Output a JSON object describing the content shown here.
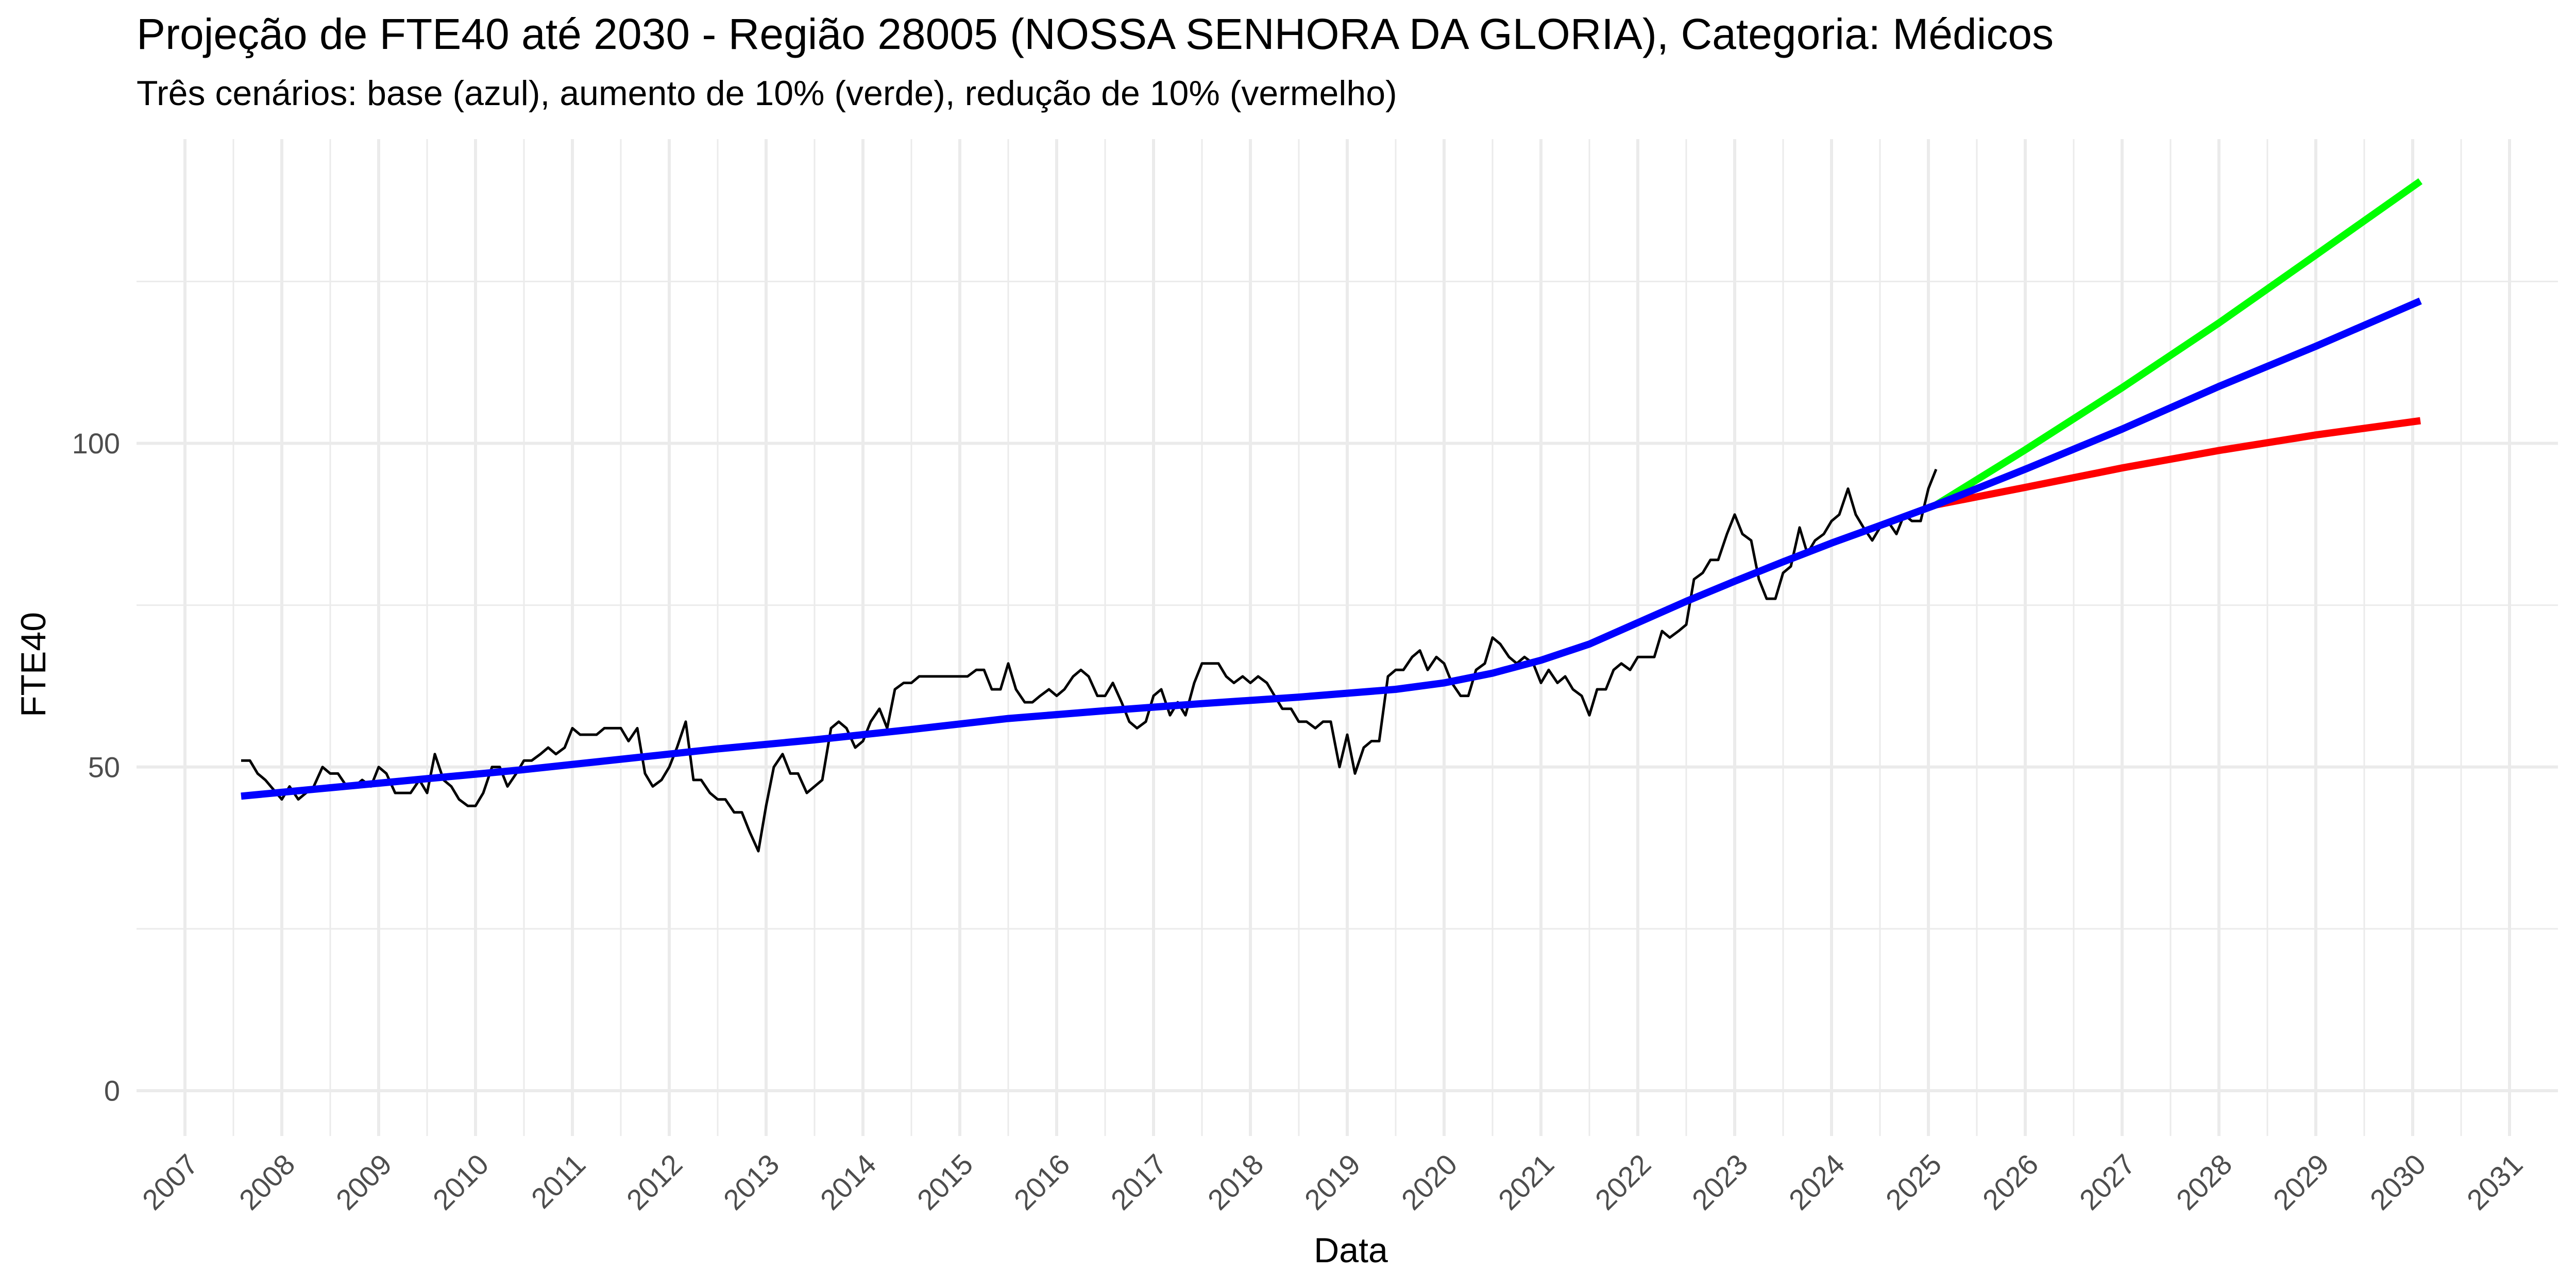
{
  "chart_data": {
    "type": "line",
    "title": "Projeção de FTE40 até 2030 - Região 28005 (NOSSA SENHORA DA GLORIA), Categoria: Médicos",
    "subtitle": "Três cenários: base (azul), aumento de 10% (verde), redução de 10% (vermelho)",
    "xlabel": "Data",
    "ylabel": "FTE40",
    "xlim": [
      2006.5,
      2031.5
    ],
    "ylim": [
      -7,
      147
    ],
    "x_ticks": [
      2007,
      2008,
      2009,
      2010,
      2011,
      2012,
      2013,
      2014,
      2015,
      2016,
      2017,
      2018,
      2019,
      2020,
      2021,
      2022,
      2023,
      2024,
      2025,
      2026,
      2027,
      2028,
      2029,
      2030,
      2031
    ],
    "y_ticks": [
      0,
      50,
      100
    ],
    "grid": true,
    "legend": "none",
    "colors": {
      "observed": "#000000",
      "base": "#0000ff",
      "aumento": "#00ff00",
      "reducao": "#ff0000",
      "grid": "#ebebeb"
    },
    "series": [
      {
        "key": "observed",
        "x": [
          2007.58,
          2007.67,
          2007.75,
          2007.83,
          2008.0,
          2008.08,
          2008.17,
          2008.25,
          2008.33,
          2008.42,
          2008.5,
          2008.58,
          2008.67,
          2008.75,
          2008.83,
          2008.92,
          2009.0,
          2009.08,
          2009.17,
          2009.25,
          2009.33,
          2009.42,
          2009.5,
          2009.58,
          2009.67,
          2009.75,
          2009.83,
          2009.92,
          2010.0,
          2010.08,
          2010.17,
          2010.25,
          2010.33,
          2010.42,
          2010.5,
          2010.58,
          2010.67,
          2010.75,
          2010.83,
          2010.92,
          2011.0,
          2011.08,
          2011.17,
          2011.25,
          2011.33,
          2011.42,
          2011.5,
          2011.58,
          2011.67,
          2011.75,
          2011.83,
          2011.92,
          2012.0,
          2012.08,
          2012.17,
          2012.25,
          2012.33,
          2012.42,
          2012.5,
          2012.58,
          2012.67,
          2012.75,
          2012.83,
          2012.92,
          2013.0,
          2013.08,
          2013.17,
          2013.25,
          2013.33,
          2013.42,
          2013.5,
          2013.58,
          2013.67,
          2013.75,
          2013.83,
          2013.92,
          2014.0,
          2014.08,
          2014.17,
          2014.25,
          2014.33,
          2014.42,
          2014.5,
          2014.58,
          2014.67,
          2014.75,
          2014.83,
          2014.92,
          2015.0,
          2015.08,
          2015.17,
          2015.25,
          2015.33,
          2015.42,
          2015.5,
          2015.58,
          2015.67,
          2015.75,
          2015.83,
          2015.92,
          2016.0,
          2016.08,
          2016.17,
          2016.25,
          2016.33,
          2016.42,
          2016.5,
          2016.58,
          2016.67,
          2016.75,
          2016.83,
          2016.92,
          2017.0,
          2017.08,
          2017.17,
          2017.25,
          2017.33,
          2017.42,
          2017.5,
          2017.58,
          2017.67,
          2017.75,
          2017.83,
          2017.92,
          2018.0,
          2018.08,
          2018.17,
          2018.25,
          2018.33,
          2018.42,
          2018.5,
          2018.58,
          2018.67,
          2018.75,
          2018.83,
          2018.92,
          2019.0,
          2019.08,
          2019.17,
          2019.25,
          2019.33,
          2019.42,
          2019.5,
          2019.58,
          2019.67,
          2019.75,
          2019.83,
          2019.92,
          2020.0,
          2020.08,
          2020.17,
          2020.25,
          2020.33,
          2020.42,
          2020.5,
          2020.58,
          2020.67,
          2020.75,
          2020.83,
          2020.92,
          2021.0,
          2021.08,
          2021.17,
          2021.25,
          2021.33,
          2021.42,
          2021.5,
          2021.58,
          2021.67,
          2021.75,
          2021.83,
          2021.92,
          2022.0,
          2022.08,
          2022.17,
          2022.25,
          2022.33,
          2022.42,
          2022.5,
          2022.58,
          2022.67,
          2022.75,
          2022.83,
          2022.92,
          2023.0,
          2023.08,
          2023.17,
          2023.25,
          2023.33,
          2023.42,
          2023.5,
          2023.58,
          2023.67,
          2023.75,
          2023.83,
          2023.92,
          2024.0,
          2024.08,
          2024.17,
          2024.25,
          2024.33,
          2024.42,
          2024.5,
          2024.58,
          2024.67,
          2024.75,
          2024.83,
          2024.92,
          2025.0,
          2025.08
        ],
        "values": [
          51,
          51,
          49,
          48,
          45,
          47,
          45,
          46,
          47,
          50,
          49,
          49,
          47,
          47,
          48,
          47,
          50,
          49,
          46,
          46,
          46,
          48,
          46,
          52,
          48,
          47,
          45,
          44,
          44,
          46,
          50,
          50,
          47,
          49,
          51,
          51,
          52,
          53,
          52,
          53,
          56,
          55,
          55,
          55,
          56,
          56,
          56,
          54,
          56,
          49,
          47,
          48,
          50,
          53,
          57,
          48,
          48,
          46,
          45,
          45,
          43,
          43,
          40,
          37,
          44,
          50,
          52,
          49,
          49,
          46,
          47,
          48,
          56,
          57,
          56,
          53,
          54,
          57,
          59,
          56,
          62,
          63,
          63,
          64,
          64,
          64,
          64,
          64,
          64,
          64,
          65,
          65,
          62,
          62,
          66,
          62,
          60,
          60,
          61,
          62,
          61,
          62,
          64,
          65,
          64,
          61,
          61,
          63,
          60,
          57,
          56,
          57,
          61,
          62,
          58,
          60,
          58,
          63,
          66,
          66,
          66,
          64,
          63,
          64,
          63,
          64,
          63,
          61,
          59,
          59,
          57,
          57,
          56,
          57,
          57,
          50,
          55,
          49,
          53,
          54,
          54,
          64,
          65,
          65,
          67,
          68,
          65,
          67,
          66,
          63,
          61,
          61,
          65,
          66,
          70,
          69,
          67,
          66,
          67,
          66,
          63,
          65,
          63,
          64,
          62,
          61,
          58,
          62,
          62,
          65,
          66,
          65,
          67,
          67,
          67,
          71,
          70,
          71,
          72,
          79,
          80,
          82,
          82,
          86,
          89,
          86,
          85,
          79,
          76,
          76,
          80,
          81,
          87,
          83,
          85,
          86,
          88,
          89,
          93,
          89,
          87,
          85,
          87,
          88,
          86,
          89,
          88,
          88,
          93,
          96
        ]
      },
      {
        "key": "base",
        "x": [
          2007.58,
          2008.5,
          2009.5,
          2010.5,
          2011.5,
          2012.5,
          2013.5,
          2014.5,
          2015.5,
          2016.5,
          2017.5,
          2018.5,
          2019.5,
          2020.0,
          2020.5,
          2021.0,
          2021.5,
          2022.0,
          2022.5,
          2023.0,
          2023.5,
          2024.0,
          2024.5,
          2025.08,
          2026.0,
          2027.0,
          2028.0,
          2029.0,
          2030.08
        ],
        "values": [
          45.5,
          46.8,
          48.2,
          49.6,
          51.2,
          52.8,
          54.2,
          55.8,
          57.5,
          58.7,
          59.8,
          60.8,
          62.0,
          63.0,
          64.5,
          66.5,
          69.0,
          72.3,
          75.6,
          78.7,
          81.7,
          84.6,
          87.3,
          90.5,
          96.0,
          102.2,
          108.8,
          115.0,
          122.0
        ]
      },
      {
        "key": "aumento",
        "x": [
          2025.08,
          2026.0,
          2027.0,
          2028.0,
          2029.0,
          2030.08
        ],
        "values": [
          90.5,
          99.0,
          108.6,
          118.6,
          129.1,
          140.5
        ]
      },
      {
        "key": "reducao",
        "x": [
          2025.08,
          2026.0,
          2027.0,
          2028.0,
          2029.0,
          2030.08
        ],
        "values": [
          90.5,
          93.2,
          96.2,
          98.9,
          101.3,
          103.5
        ]
      }
    ]
  }
}
